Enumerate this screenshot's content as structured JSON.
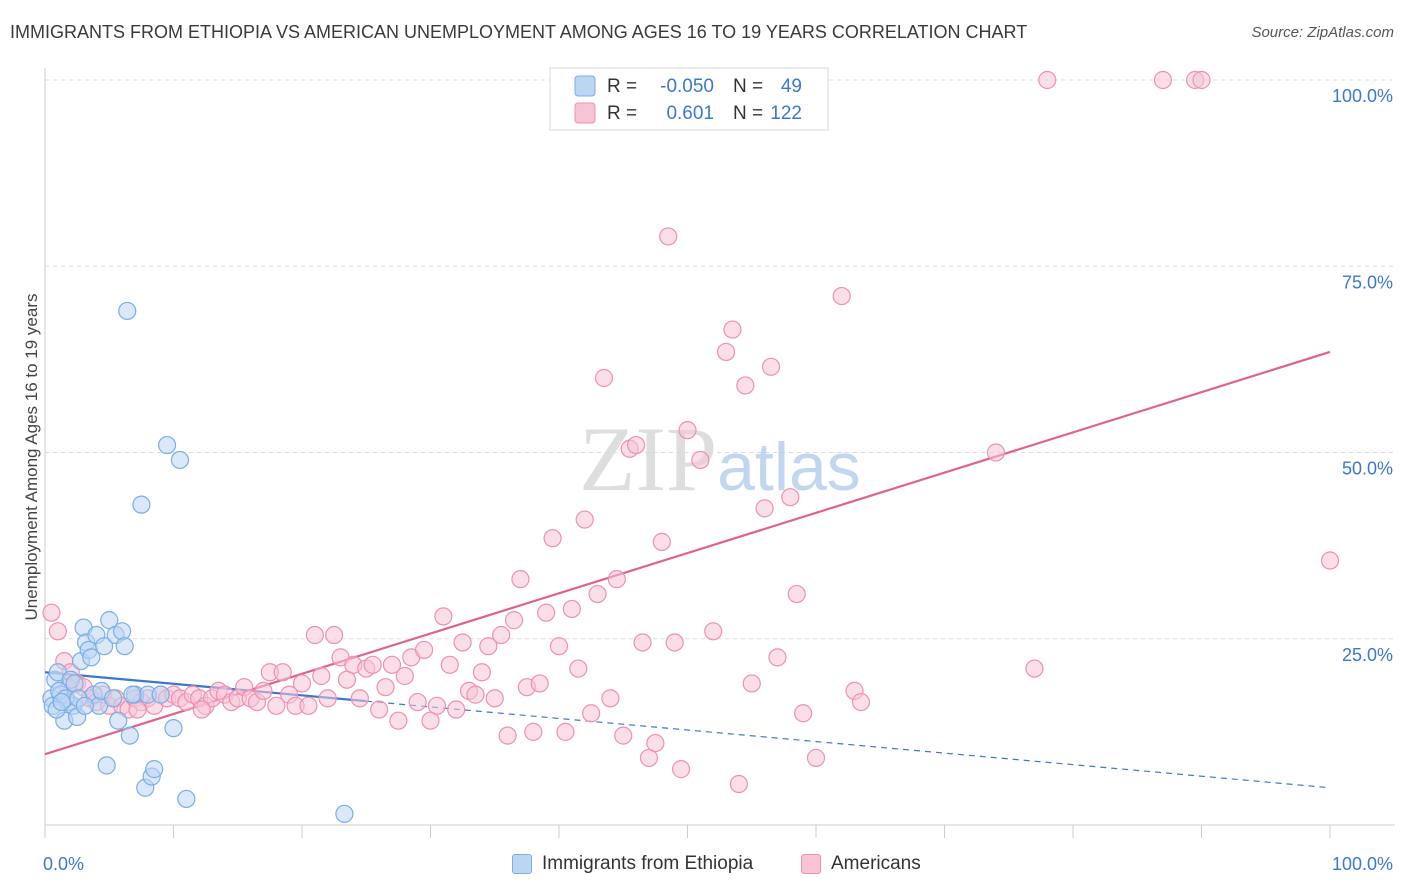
{
  "chart_data": {
    "type": "scatter",
    "title": "IMMIGRANTS FROM ETHIOPIA VS AMERICAN UNEMPLOYMENT AMONG AGES 16 TO 19 YEARS CORRELATION CHART",
    "source": "Source: ZipAtlas.com",
    "watermark": "ZIPatlas",
    "ylabel": "Unemployment Among Ages 16 to 19 years",
    "xlabel": "",
    "xlim": [
      0,
      100
    ],
    "ylim": [
      0,
      100
    ],
    "x_tick_labels": [
      "0.0%",
      "100.0%"
    ],
    "y_tick_labels": [
      "25.0%",
      "50.0%",
      "75.0%",
      "100.0%"
    ],
    "y_tick_values": [
      25,
      50,
      75,
      100
    ],
    "legend": {
      "r_label": "R =",
      "n_label": "N =",
      "rows": [
        {
          "r": "-0.050",
          "n": "49"
        },
        {
          "r": "0.601",
          "n": "122"
        }
      ]
    },
    "series": [
      {
        "name": "Immigrants from Ethiopia",
        "color": "#7aaee6",
        "fill": "#bcd6f2",
        "trend_color": "#3a78d0",
        "trend": {
          "x0": 0,
          "y0": 20.5,
          "x1": 100,
          "y1": 5.0,
          "solid_until": 25
        },
        "points": [
          [
            0.5,
            17
          ],
          [
            0.6,
            16
          ],
          [
            0.8,
            19.5
          ],
          [
            1,
            20.5
          ],
          [
            1.2,
            17.5
          ],
          [
            1.5,
            14
          ],
          [
            1.8,
            16.5
          ],
          [
            2,
            19.5
          ],
          [
            2.2,
            16
          ],
          [
            2.5,
            14.5
          ],
          [
            2.8,
            22
          ],
          [
            3,
            26.5
          ],
          [
            3.2,
            24.5
          ],
          [
            3.4,
            23.5
          ],
          [
            3.6,
            22.5
          ],
          [
            3.8,
            17.5
          ],
          [
            4,
            25.5
          ],
          [
            4.2,
            16
          ],
          [
            4.4,
            18
          ],
          [
            4.6,
            24
          ],
          [
            4.8,
            8
          ],
          [
            5,
            27.5
          ],
          [
            5.3,
            17
          ],
          [
            5.5,
            25.5
          ],
          [
            5.7,
            14
          ],
          [
            6,
            26
          ],
          [
            6.2,
            24
          ],
          [
            6.4,
            69
          ],
          [
            6.6,
            12
          ],
          [
            7,
            17.5
          ],
          [
            7.5,
            43
          ],
          [
            7.8,
            5
          ],
          [
            8,
            17.5
          ],
          [
            8.3,
            6.5
          ],
          [
            8.5,
            7.5
          ],
          [
            9,
            17.5
          ],
          [
            9.5,
            51
          ],
          [
            10,
            13
          ],
          [
            10.5,
            49
          ],
          [
            11,
            3.5
          ],
          [
            1.1,
            18
          ],
          [
            1.6,
            17
          ],
          [
            2.3,
            19
          ],
          [
            0.9,
            15.5
          ],
          [
            1.3,
            16.5
          ],
          [
            2.6,
            17
          ],
          [
            3.1,
            16
          ],
          [
            23.3,
            1.5
          ],
          [
            6.8,
            17.5
          ]
        ]
      },
      {
        "name": "Americans",
        "color": "#f08fb0",
        "fill": "#f7c4d6",
        "trend_color": "#e0628e",
        "trend": {
          "x0": 0,
          "y0": 9.5,
          "x1": 100,
          "y1": 63.5,
          "solid_until": 100
        },
        "points": [
          [
            0.5,
            28.5
          ],
          [
            1,
            26
          ],
          [
            1.5,
            22
          ],
          [
            2,
            20.5
          ],
          [
            2.5,
            19
          ],
          [
            3,
            18.5
          ],
          [
            3.5,
            17
          ],
          [
            4,
            16.5
          ],
          [
            4.5,
            17.5
          ],
          [
            5,
            16
          ],
          [
            5.5,
            17
          ],
          [
            6,
            16
          ],
          [
            6.5,
            15.5
          ],
          [
            7,
            17
          ],
          [
            7.5,
            16.5
          ],
          [
            8,
            17
          ],
          [
            8.5,
            16
          ],
          [
            9,
            17.5
          ],
          [
            9.5,
            17
          ],
          [
            10,
            17.5
          ],
          [
            10.5,
            17
          ],
          [
            11,
            16.5
          ],
          [
            11.5,
            17.5
          ],
          [
            12,
            17
          ],
          [
            12.5,
            16
          ],
          [
            13,
            17
          ],
          [
            13.5,
            18
          ],
          [
            14,
            17.5
          ],
          [
            14.5,
            16.5
          ],
          [
            15,
            17
          ],
          [
            15.5,
            18.5
          ],
          [
            16,
            17
          ],
          [
            16.5,
            16.5
          ],
          [
            17,
            18
          ],
          [
            17.5,
            20.5
          ],
          [
            18,
            16
          ],
          [
            18.5,
            20.5
          ],
          [
            19,
            17.5
          ],
          [
            19.5,
            16
          ],
          [
            20,
            19
          ],
          [
            20.5,
            16
          ],
          [
            21,
            25.5
          ],
          [
            21.5,
            20
          ],
          [
            22,
            17
          ],
          [
            22.5,
            25.5
          ],
          [
            23,
            22.5
          ],
          [
            23.5,
            19.5
          ],
          [
            24,
            21.5
          ],
          [
            24.5,
            17
          ],
          [
            25,
            21
          ],
          [
            25.5,
            21.5
          ],
          [
            26,
            15.5
          ],
          [
            26.5,
            18.5
          ],
          [
            27,
            21.5
          ],
          [
            27.5,
            14
          ],
          [
            28,
            20
          ],
          [
            28.5,
            22.5
          ],
          [
            29,
            16.5
          ],
          [
            29.5,
            23.5
          ],
          [
            30,
            14
          ],
          [
            30.5,
            16
          ],
          [
            31,
            28
          ],
          [
            31.5,
            21.5
          ],
          [
            32,
            15.5
          ],
          [
            32.5,
            24.5
          ],
          [
            33,
            18
          ],
          [
            33.5,
            17.5
          ],
          [
            34,
            20.5
          ],
          [
            34.5,
            24
          ],
          [
            35,
            17
          ],
          [
            35.5,
            25.5
          ],
          [
            36,
            12
          ],
          [
            36.5,
            27.5
          ],
          [
            37,
            33
          ],
          [
            37.5,
            18.5
          ],
          [
            38,
            12.5
          ],
          [
            38.5,
            19
          ],
          [
            39,
            28.5
          ],
          [
            39.5,
            38.5
          ],
          [
            40,
            24
          ],
          [
            40.5,
            12.5
          ],
          [
            41,
            29
          ],
          [
            41.5,
            21
          ],
          [
            42,
            41
          ],
          [
            42.5,
            15
          ],
          [
            43,
            31
          ],
          [
            43.5,
            60
          ],
          [
            44,
            17
          ],
          [
            44.5,
            33
          ],
          [
            45,
            12
          ],
          [
            45.5,
            50.5
          ],
          [
            46,
            51
          ],
          [
            46.5,
            24.5
          ],
          [
            47,
            9
          ],
          [
            47.5,
            11
          ],
          [
            48,
            38
          ],
          [
            48.5,
            79
          ],
          [
            49,
            24.5
          ],
          [
            49.5,
            7.5
          ],
          [
            50,
            53
          ],
          [
            51,
            49
          ],
          [
            52,
            26
          ],
          [
            53,
            63.5
          ],
          [
            53.5,
            66.5
          ],
          [
            54,
            5.5
          ],
          [
            54.5,
            59
          ],
          [
            55,
            19
          ],
          [
            56,
            42.5
          ],
          [
            56.5,
            61.5
          ],
          [
            57,
            22.5
          ],
          [
            58,
            44
          ],
          [
            58.5,
            31
          ],
          [
            59,
            15
          ],
          [
            60,
            9
          ],
          [
            62,
            71
          ],
          [
            63,
            18
          ],
          [
            63.5,
            16.5
          ],
          [
            74,
            50
          ],
          [
            77,
            21
          ],
          [
            78,
            100
          ],
          [
            87,
            100
          ],
          [
            89.5,
            100
          ],
          [
            90,
            100
          ],
          [
            100,
            35.5
          ],
          [
            7.2,
            15.5
          ],
          [
            12.2,
            15.5
          ],
          [
            1.8,
            18.5
          ]
        ]
      }
    ]
  }
}
